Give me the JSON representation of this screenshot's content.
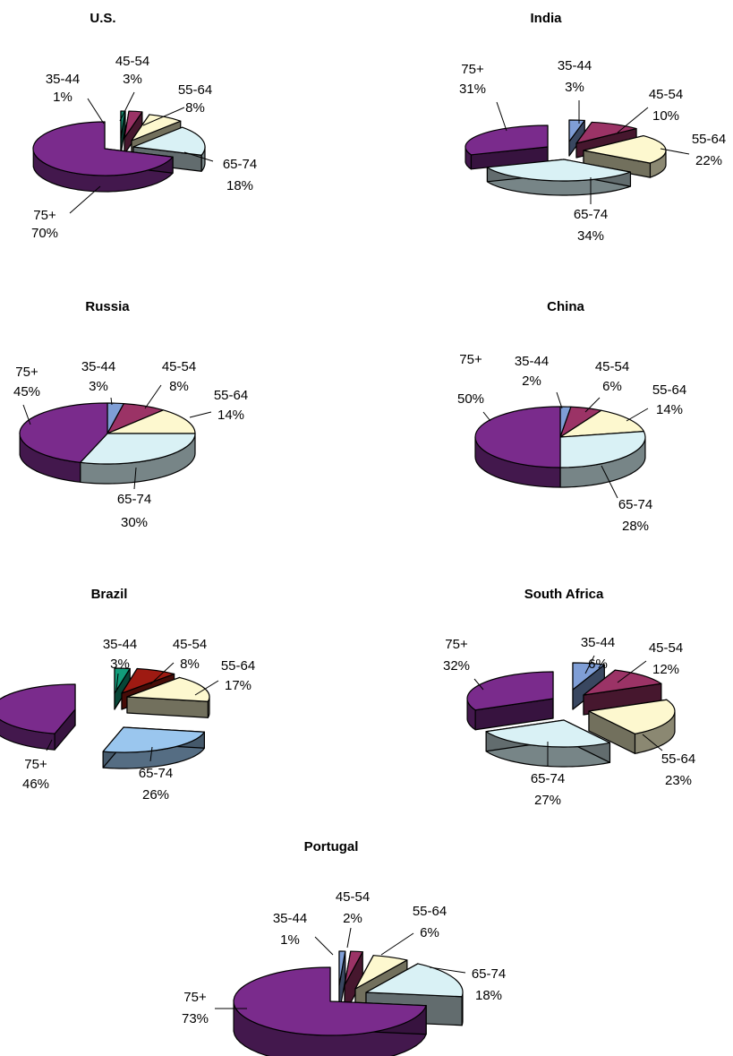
{
  "chart_data": [
    {
      "type": "pie",
      "title": "U.S.",
      "categories": [
        "35-44",
        "45-54",
        "55-64",
        "65-74",
        "75+"
      ],
      "values": [
        1,
        3,
        8,
        18,
        70
      ],
      "labels": [
        "1%",
        "3%",
        "8%",
        "18%",
        "70%"
      ]
    },
    {
      "type": "pie",
      "title": "India",
      "categories": [
        "35-44",
        "45-54",
        "55-64",
        "65-74",
        "75+"
      ],
      "values": [
        3,
        10,
        22,
        34,
        31
      ],
      "labels": [
        "3%",
        "10%",
        "22%",
        "34%",
        "31%"
      ]
    },
    {
      "type": "pie",
      "title": "Russia",
      "categories": [
        "35-44",
        "45-54",
        "55-64",
        "65-74",
        "75+"
      ],
      "values": [
        3,
        8,
        14,
        30,
        45
      ],
      "labels": [
        "3%",
        "8%",
        "14%",
        "30%",
        "45%"
      ]
    },
    {
      "type": "pie",
      "title": "China",
      "categories": [
        "35-44",
        "45-54",
        "55-64",
        "65-74",
        "75+"
      ],
      "values": [
        2,
        6,
        14,
        28,
        50
      ],
      "labels": [
        "2%",
        "6%",
        "14%",
        "28%",
        "50%"
      ]
    },
    {
      "type": "pie",
      "title": "Brazil",
      "categories": [
        "35-44",
        "45-54",
        "55-64",
        "65-74",
        "75+"
      ],
      "values": [
        3,
        8,
        17,
        26,
        46
      ],
      "labels": [
        "3%",
        "8%",
        "17%",
        "26%",
        "46%"
      ]
    },
    {
      "type": "pie",
      "title": "South Africa",
      "categories": [
        "35-44",
        "45-54",
        "55-64",
        "65-74",
        "75+"
      ],
      "values": [
        6,
        12,
        23,
        27,
        32
      ],
      "labels": [
        "6%",
        "12%",
        "23%",
        "27%",
        "32%"
      ]
    },
    {
      "type": "pie",
      "title": "Portugal",
      "categories": [
        "35-44",
        "45-54",
        "55-64",
        "65-74",
        "75+"
      ],
      "values": [
        1,
        2,
        6,
        18,
        73
      ],
      "labels": [
        "1%",
        "2%",
        "6%",
        "18%",
        "73%"
      ]
    }
  ],
  "colors": {
    "default": {
      "35-44": "#7f9ed6",
      "45-54": "#9b3366",
      "55-64": "#fdf8cf",
      "65-74": "#d9f1f5",
      "75+": "#7a2b8c"
    },
    "us_35_44": "#138a6f",
    "brazil": {
      "35-44": "#129c7a",
      "45-54": "#9e1a12",
      "55-64": "#fdf8cf",
      "65-74": "#9ac6ee",
      "75+": "#7a2b8c"
    }
  }
}
